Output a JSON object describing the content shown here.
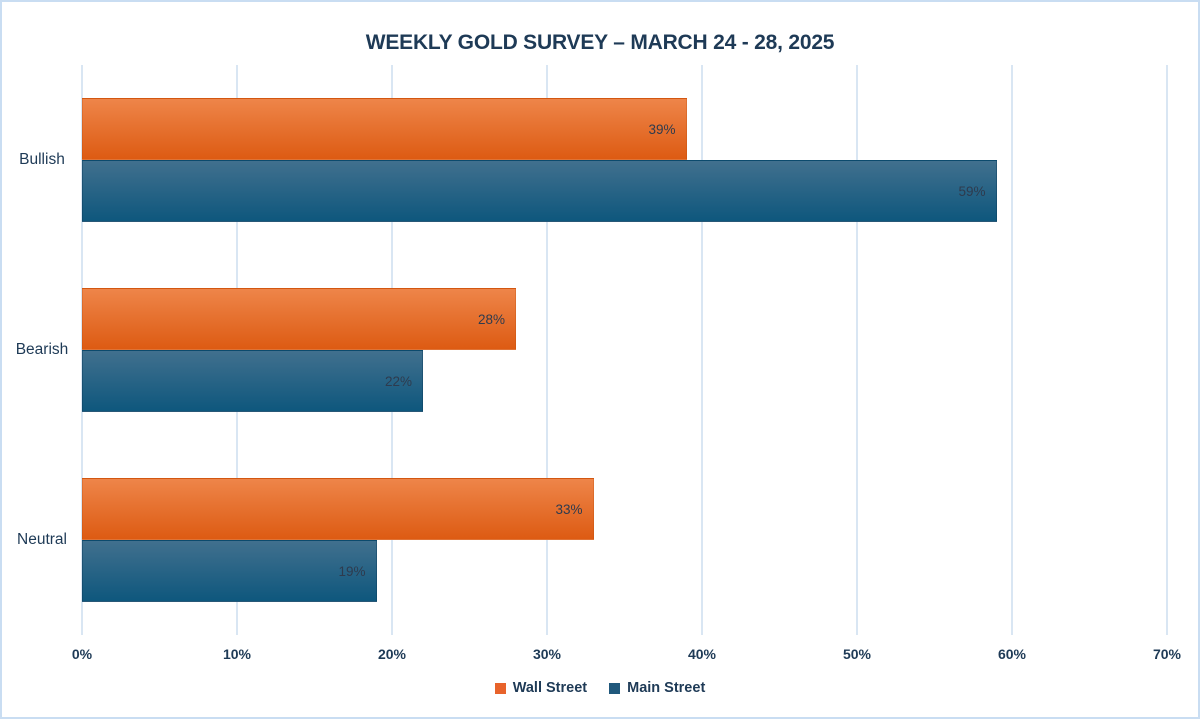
{
  "chart_data": {
    "type": "bar",
    "orientation": "horizontal",
    "title": "WEEKLY GOLD SURVEY – MARCH 24 - 28, 2025",
    "categories": [
      "Bullish",
      "Bearish",
      "Neutral"
    ],
    "series": [
      {
        "name": "Wall Street",
        "values": [
          39,
          28,
          33
        ],
        "color_top": "#ee8549",
        "color_bottom": "#dd5b13",
        "legend_color": "#e8632b"
      },
      {
        "name": "Main Street",
        "values": [
          59,
          22,
          19
        ],
        "color_top": "#41708e",
        "color_bottom": "#0e577d",
        "legend_color": "#20587c"
      }
    ],
    "value_suffix": "%",
    "x_axis": {
      "min": 0,
      "max": 70,
      "tick_step": 10,
      "tick_labels": [
        "0%",
        "10%",
        "20%",
        "30%",
        "40%",
        "50%",
        "60%",
        "70%"
      ]
    },
    "grid": true,
    "legend_position": "bottom",
    "data_labels": "inside-end"
  },
  "colors": {
    "background": "#ffffff",
    "border": "#c9ddf2",
    "gridline": "#d9e6f3",
    "title_text": "#1e3a56",
    "axis_text": "#1e3a56",
    "data_label_text": "#2e3b4e"
  }
}
